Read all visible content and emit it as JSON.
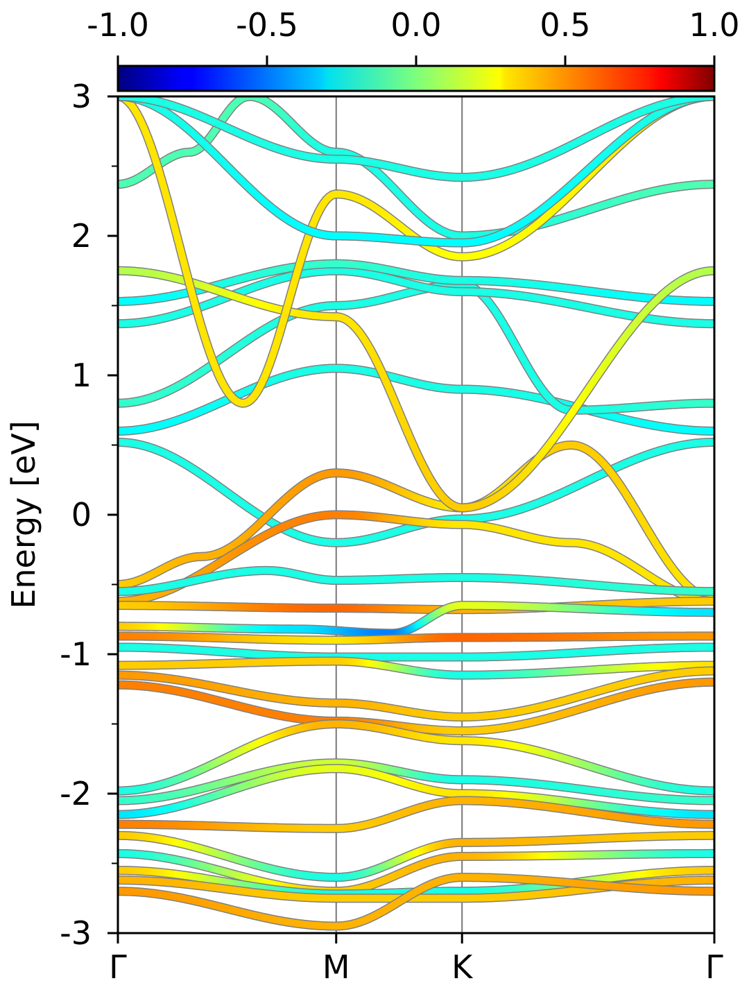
{
  "chart_data": {
    "type": "line",
    "ylabel": "Energy [eV]",
    "ylim": [
      -3,
      3
    ],
    "y_ticks": [
      -3,
      -2,
      -1,
      0,
      1,
      2,
      3
    ],
    "y_tick_labels": [
      "-3",
      "-2",
      "-1",
      "0",
      "1",
      "2",
      "3"
    ],
    "y_minor_step": 0.5,
    "x_range": [
      0,
      1
    ],
    "k_points": [
      {
        "label": "Γ",
        "x": 0.0
      },
      {
        "label": "M",
        "x": 0.366
      },
      {
        "label": "K",
        "x": 0.577
      },
      {
        "label": "Γ",
        "x": 1.0
      }
    ],
    "colorbar": {
      "colormap": "jet",
      "range": [
        -1.0,
        1.0
      ],
      "ticks": [
        -1.0,
        -0.5,
        0.0,
        0.5,
        1.0
      ],
      "tick_labels": [
        "-1.0",
        "-0.5",
        "0.0",
        "0.5",
        "1.0"
      ]
    },
    "series": [
      {
        "x": [
          0,
          0.366,
          0.577,
          1
        ],
        "y": [
          0.52,
          -0.2,
          -0.03,
          0.52
        ],
        "w": [
          -0.2,
          -0.2,
          -0.2,
          -0.2
        ]
      },
      {
        "x": [
          0,
          0.14,
          0.366,
          0.577,
          0.76,
          1
        ],
        "y": [
          -0.5,
          -0.3,
          0.3,
          0.05,
          0.5,
          -0.6
        ],
        "w": [
          0.35,
          0.4,
          0.45,
          0.3,
          0.35,
          0.3
        ]
      },
      {
        "x": [
          0,
          0.366,
          0.577,
          0.76,
          1
        ],
        "y": [
          -0.62,
          0.0,
          -0.07,
          -0.2,
          -0.62
        ],
        "w": [
          0.4,
          0.5,
          0.3,
          0.3,
          0.3
        ]
      },
      {
        "x": [
          0,
          0.25,
          0.366,
          0.577,
          1
        ],
        "y": [
          -0.55,
          -0.4,
          -0.47,
          -0.45,
          -0.55
        ],
        "w": [
          -0.2,
          -0.2,
          -0.2,
          -0.2,
          -0.15
        ]
      },
      {
        "x": [
          0,
          0.366,
          0.577,
          1
        ],
        "y": [
          -0.65,
          -0.67,
          -0.68,
          -0.62
        ],
        "w": [
          0.35,
          0.55,
          0.4,
          0.35
        ]
      },
      {
        "x": [
          0,
          0.3,
          0.46,
          0.577,
          1
        ],
        "y": [
          -0.8,
          -0.82,
          -0.85,
          -0.65,
          -0.7
        ],
        "w": [
          0.35,
          -0.3,
          -0.5,
          0.2,
          -0.3
        ]
      },
      {
        "x": [
          0,
          0.366,
          0.577,
          1
        ],
        "y": [
          -0.87,
          -0.9,
          -0.88,
          -0.87
        ],
        "w": [
          0.5,
          0.3,
          0.55,
          0.45
        ]
      },
      {
        "x": [
          0,
          0.366,
          0.577,
          1
        ],
        "y": [
          -0.95,
          -1.02,
          -1.02,
          -0.95
        ],
        "w": [
          -0.2,
          -0.2,
          -0.2,
          -0.2
        ]
      },
      {
        "x": [
          0,
          0.366,
          0.577,
          1
        ],
        "y": [
          -1.08,
          -1.05,
          -1.15,
          -1.08
        ],
        "w": [
          0.35,
          0.35,
          -0.2,
          0.3
        ]
      },
      {
        "x": [
          0,
          0.366,
          0.577,
          1
        ],
        "y": [
          -1.15,
          -1.35,
          -1.45,
          -1.12
        ],
        "w": [
          0.45,
          0.4,
          0.35,
          0.35
        ]
      },
      {
        "x": [
          0,
          0.366,
          0.577,
          1
        ],
        "y": [
          -1.22,
          -1.48,
          -1.55,
          -1.2
        ],
        "w": [
          0.5,
          0.5,
          0.35,
          0.45
        ]
      },
      {
        "x": [
          0,
          0.366,
          0.577,
          1
        ],
        "y": [
          -1.98,
          -1.5,
          -1.62,
          -1.98
        ],
        "w": [
          -0.2,
          0.4,
          0.3,
          -0.2
        ]
      },
      {
        "x": [
          0,
          0.366,
          0.577,
          1
        ],
        "y": [
          -2.05,
          -1.78,
          -1.9,
          -2.05
        ],
        "w": [
          -0.15,
          0.15,
          -0.2,
          -0.15
        ]
      },
      {
        "x": [
          0,
          0.366,
          0.577,
          1
        ],
        "y": [
          -2.15,
          -1.82,
          -2.0,
          -2.15
        ],
        "w": [
          -0.3,
          0.2,
          0.3,
          -0.3
        ]
      },
      {
        "x": [
          0,
          0.366,
          0.577,
          1
        ],
        "y": [
          -2.22,
          -2.25,
          -2.05,
          -2.22
        ],
        "w": [
          0.5,
          0.35,
          0.4,
          0.45
        ]
      },
      {
        "x": [
          0,
          0.366,
          0.577,
          1
        ],
        "y": [
          -2.3,
          -2.6,
          -2.35,
          -2.3
        ],
        "w": [
          0.35,
          -0.2,
          0.4,
          0.35
        ]
      },
      {
        "x": [
          0,
          0.366,
          0.577,
          1
        ],
        "y": [
          -2.43,
          -2.7,
          -2.45,
          -2.43
        ],
        "w": [
          -0.2,
          0.35,
          0.4,
          -0.2
        ]
      },
      {
        "x": [
          0,
          0.366,
          0.577,
          1
        ],
        "y": [
          -2.55,
          -2.72,
          -2.7,
          -2.55
        ],
        "w": [
          0.35,
          -0.2,
          -0.2,
          0.35
        ]
      },
      {
        "x": [
          0,
          0.366,
          0.577,
          1
        ],
        "y": [
          -2.62,
          -2.75,
          -2.75,
          -2.62
        ],
        "w": [
          0.4,
          0.35,
          0.35,
          0.4
        ]
      },
      {
        "x": [
          0,
          0.366,
          0.577,
          1
        ],
        "y": [
          -2.7,
          -2.95,
          -2.6,
          -2.7
        ],
        "w": [
          0.45,
          0.4,
          0.4,
          0.45
        ]
      },
      {
        "x": [
          0,
          0.366,
          0.577,
          1
        ],
        "y": [
          0.6,
          1.05,
          0.9,
          0.6
        ],
        "w": [
          -0.25,
          -0.2,
          -0.2,
          -0.25
        ]
      },
      {
        "x": [
          0,
          0.366,
          0.577,
          0.76,
          1
        ],
        "y": [
          0.8,
          1.5,
          1.65,
          0.75,
          0.8
        ],
        "w": [
          -0.15,
          -0.2,
          -0.2,
          -0.2,
          -0.15
        ]
      },
      {
        "x": [
          0,
          0.366,
          0.577,
          1
        ],
        "y": [
          1.37,
          1.75,
          1.6,
          1.37
        ],
        "w": [
          -0.2,
          -0.2,
          -0.2,
          -0.2
        ]
      },
      {
        "x": [
          0,
          0.366,
          0.577,
          1
        ],
        "y": [
          1.53,
          1.8,
          1.68,
          1.53
        ],
        "w": [
          -0.25,
          -0.15,
          -0.2,
          -0.25
        ]
      },
      {
        "x": [
          0,
          0.366,
          0.577,
          1
        ],
        "y": [
          1.75,
          1.42,
          0.05,
          1.75
        ],
        "w": [
          0.1,
          0.3,
          0.35,
          0.1
        ]
      },
      {
        "x": [
          0,
          0.12,
          0.22,
          0.366,
          0.577,
          1
        ],
        "y": [
          2.37,
          2.6,
          3.0,
          2.6,
          2.0,
          2.37
        ],
        "w": [
          -0.1,
          -0.1,
          -0.1,
          -0.2,
          -0.2,
          -0.1
        ]
      },
      {
        "x": [
          0,
          0.21,
          0.366,
          0.577,
          1
        ],
        "y": [
          3.0,
          0.8,
          2.3,
          1.85,
          3.0
        ],
        "w": [
          0.3,
          0.3,
          0.3,
          0.25,
          0.3
        ]
      },
      {
        "x": [
          0,
          0.366,
          0.577,
          1
        ],
        "y": [
          3.0,
          2.0,
          1.95,
          3.0
        ],
        "w": [
          -0.2,
          -0.25,
          -0.25,
          -0.2
        ]
      },
      {
        "x": [
          0,
          0.366,
          0.577,
          1
        ],
        "y": [
          3.0,
          2.55,
          2.42,
          3.0
        ],
        "w": [
          -0.2,
          -0.2,
          -0.2,
          -0.2
        ]
      }
    ]
  }
}
